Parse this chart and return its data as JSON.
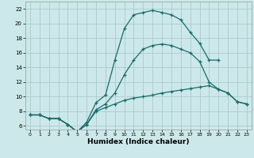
{
  "xlabel": "Humidex (Indice chaleur)",
  "bg_color": "#cce8ea",
  "grid_color": "#aacccc",
  "line_color": "#1a6b6b",
  "xlim": [
    -0.5,
    23.5
  ],
  "ylim": [
    5.5,
    23
  ],
  "xticks": [
    0,
    1,
    2,
    3,
    4,
    5,
    6,
    7,
    8,
    9,
    10,
    11,
    12,
    13,
    14,
    15,
    16,
    17,
    18,
    19,
    20,
    21,
    22,
    23
  ],
  "yticks": [
    6,
    8,
    10,
    12,
    14,
    16,
    18,
    20,
    22
  ],
  "line1_x": [
    0,
    1,
    2,
    3,
    4,
    5,
    6,
    7,
    8,
    9,
    10,
    11,
    12,
    13,
    14,
    15,
    16,
    17,
    18,
    19,
    20,
    21,
    22,
    23
  ],
  "line1_y": [
    7.5,
    7.5,
    7.0,
    7.0,
    6.2,
    5.2,
    6.2,
    8.2,
    9.0,
    10.5,
    13.0,
    15.0,
    16.5,
    17.0,
    17.2,
    17.0,
    16.5,
    16.0,
    14.8,
    12.0,
    11.0,
    10.5,
    9.3,
    9.0
  ],
  "line2_x": [
    0,
    1,
    2,
    3,
    4,
    5,
    6,
    7,
    8,
    9,
    10,
    11,
    12,
    13,
    14,
    15,
    16,
    17,
    18,
    19,
    20
  ],
  "line2_y": [
    7.5,
    7.5,
    7.0,
    7.0,
    6.2,
    5.2,
    6.5,
    9.2,
    10.2,
    15.0,
    19.3,
    21.2,
    21.5,
    21.8,
    21.5,
    21.2,
    20.5,
    18.8,
    17.3,
    15.0,
    15.0
  ],
  "line3_x": [
    0,
    1,
    2,
    3,
    4,
    5,
    6,
    7,
    8,
    9,
    10,
    11,
    12,
    13,
    14,
    15,
    16,
    17,
    18,
    19,
    20,
    21,
    22,
    23
  ],
  "line3_y": [
    7.5,
    7.5,
    7.0,
    7.0,
    6.2,
    5.2,
    6.2,
    8.0,
    8.5,
    9.0,
    9.5,
    9.8,
    10.0,
    10.2,
    10.5,
    10.7,
    10.9,
    11.1,
    11.3,
    11.5,
    11.0,
    10.5,
    9.3,
    9.0
  ]
}
